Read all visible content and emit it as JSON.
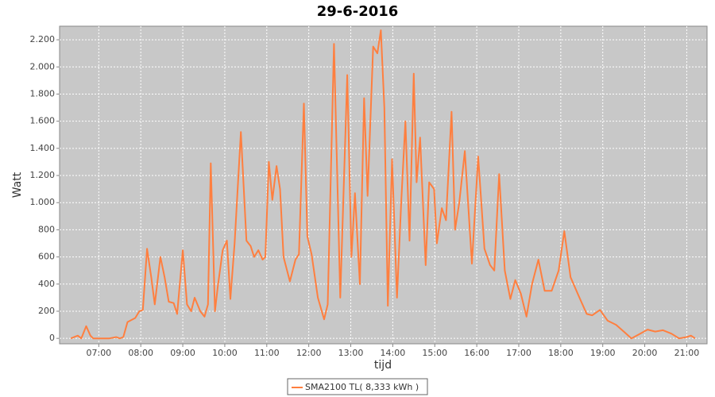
{
  "chart_data": {
    "type": "line",
    "title": "29-6-2016",
    "xlabel": "tijd",
    "ylabel": "Watt",
    "x": [
      "06:20",
      "06:30",
      "06:35",
      "06:42",
      "06:48",
      "06:52",
      "07:00",
      "07:15",
      "07:25",
      "07:30",
      "07:35",
      "07:41",
      "07:52",
      "07:58",
      "08:03",
      "08:09",
      "08:15",
      "08:20",
      "08:28",
      "08:34",
      "08:40",
      "08:47",
      "08:52",
      "09:00",
      "09:06",
      "09:12",
      "09:17",
      "09:25",
      "09:31",
      "09:36",
      "09:40",
      "09:46",
      "09:50",
      "09:57",
      "10:03",
      "10:08",
      "10:14",
      "10:23",
      "10:31",
      "10:37",
      "10:42",
      "10:48",
      "10:54",
      "10:58",
      "11:03",
      "11:08",
      "11:14",
      "11:19",
      "11:24",
      "11:33",
      "11:41",
      "11:46",
      "11:53",
      "11:58",
      "12:04",
      "12:13",
      "12:22",
      "12:27",
      "12:36",
      "12:45",
      "12:55",
      "13:01",
      "13:06",
      "13:13",
      "13:19",
      "13:24",
      "13:32",
      "13:38",
      "13:43",
      "13:48",
      "13:53",
      "13:59",
      "14:06",
      "14:12",
      "14:18",
      "14:24",
      "14:30",
      "14:34",
      "14:39",
      "14:47",
      "14:52",
      "14:59",
      "15:03",
      "15:10",
      "15:16",
      "15:24",
      "15:29",
      "15:35",
      "15:43",
      "15:53",
      "16:02",
      "16:11",
      "16:19",
      "16:25",
      "16:32",
      "16:40",
      "16:48",
      "16:55",
      "17:03",
      "17:11",
      "17:19",
      "17:28",
      "17:37",
      "17:47",
      "17:57",
      "18:05",
      "18:14",
      "18:25",
      "18:37",
      "18:45",
      "18:56",
      "19:07",
      "19:19",
      "19:30",
      "19:41",
      "19:52",
      "20:04",
      "20:15",
      "20:26",
      "20:38",
      "20:49",
      "21:00",
      "21:06",
      "21:12"
    ],
    "series": [
      {
        "name": "SMA2100 TL( 8,333 kWh )",
        "color": "#ff7f3f",
        "values": [
          0,
          20,
          0,
          90,
          20,
          0,
          0,
          0,
          10,
          0,
          10,
          120,
          150,
          200,
          210,
          660,
          450,
          250,
          600,
          450,
          270,
          260,
          180,
          650,
          250,
          200,
          300,
          200,
          160,
          250,
          1290,
          200,
          380,
          650,
          720,
          290,
          700,
          1520,
          720,
          680,
          600,
          650,
          580,
          600,
          1300,
          1020,
          1270,
          1100,
          600,
          420,
          580,
          620,
          1730,
          750,
          620,
          300,
          140,
          250,
          2170,
          300,
          1940,
          600,
          1070,
          400,
          1770,
          1050,
          2150,
          2100,
          2270,
          1700,
          240,
          1320,
          300,
          1000,
          1600,
          720,
          1950,
          1150,
          1480,
          540,
          1150,
          1100,
          700,
          960,
          870,
          1670,
          800,
          1000,
          1380,
          550,
          1340,
          660,
          540,
          500,
          1210,
          500,
          290,
          430,
          330,
          160,
          400,
          580,
          350,
          350,
          500,
          790,
          450,
          320,
          180,
          170,
          210,
          130,
          100,
          50,
          0,
          30,
          65,
          50,
          60,
          35,
          0,
          10,
          20,
          0
        ]
      }
    ],
    "xlim": [
      "06:04",
      "21:29"
    ],
    "xticks": [
      "07:00",
      "08:00",
      "09:00",
      "10:00",
      "11:00",
      "12:00",
      "13:00",
      "14:00",
      "15:00",
      "16:00",
      "17:00",
      "18:00",
      "19:00",
      "20:00",
      "21:00"
    ],
    "ylim": [
      -40,
      2300
    ],
    "yticks": [
      0,
      200,
      400,
      600,
      800,
      {
        "value": 1000,
        "label": "1.000"
      },
      {
        "value": 1200,
        "label": "1.200"
      },
      {
        "value": 1400,
        "label": "1.400"
      },
      {
        "value": 1600,
        "label": "1.600"
      },
      {
        "value": 1800,
        "label": "1.800"
      },
      {
        "value": 2000,
        "label": "2.000"
      },
      {
        "value": 2200,
        "label": "2.200"
      }
    ],
    "grid": true
  }
}
